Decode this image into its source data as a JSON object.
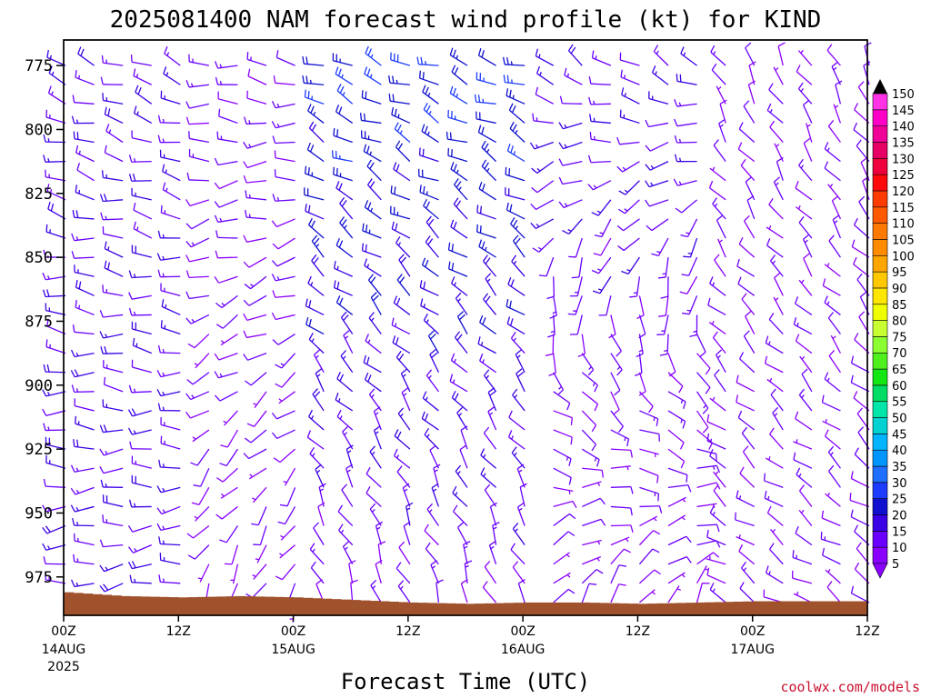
{
  "chart_data": {
    "type": "wind-barb profile",
    "title": "2025081400 NAM forecast wind profile (kt) for KIND",
    "xlabel": "Forecast Time (UTC)",
    "ylabel": "",
    "credit": "coolwx.com/models",
    "y_axis": {
      "unit": "hPa",
      "ylim": [
        765,
        990
      ],
      "ticks": [
        {
          "value": 775,
          "label": "775"
        },
        {
          "value": 800,
          "label": "800"
        },
        {
          "value": 825,
          "label": "825"
        },
        {
          "value": 850,
          "label": "850"
        },
        {
          "value": 875,
          "label": "875"
        },
        {
          "value": 900,
          "label": "900"
        },
        {
          "value": 925,
          "label": "925"
        },
        {
          "value": 950,
          "label": "950"
        },
        {
          "value": 975,
          "label": "975"
        }
      ]
    },
    "x_axis": {
      "unit": "forecast hours",
      "xlim": [
        0,
        84
      ],
      "ticks": [
        {
          "hour": 0,
          "time": "00Z",
          "date": "14AUG",
          "year": "2025"
        },
        {
          "hour": 12,
          "time": "12Z",
          "date": "",
          "year": ""
        },
        {
          "hour": 24,
          "time": "00Z",
          "date": "15AUG",
          "year": ""
        },
        {
          "hour": 36,
          "time": "12Z",
          "date": "",
          "year": ""
        },
        {
          "hour": 48,
          "time": "00Z",
          "date": "16AUG",
          "year": ""
        },
        {
          "hour": 60,
          "time": "12Z",
          "date": "",
          "year": ""
        },
        {
          "hour": 72,
          "time": "00Z",
          "date": "17AUG",
          "year": ""
        },
        {
          "hour": 84,
          "time": "12Z",
          "date": "",
          "year": ""
        }
      ]
    },
    "surface_pressure": [
      {
        "hour": 0,
        "hPa": 981
      },
      {
        "hour": 6,
        "hPa": 982.5
      },
      {
        "hour": 12,
        "hPa": 983
      },
      {
        "hour": 18,
        "hPa": 982.5
      },
      {
        "hour": 24,
        "hPa": 983
      },
      {
        "hour": 30,
        "hPa": 984
      },
      {
        "hour": 36,
        "hPa": 985
      },
      {
        "hour": 42,
        "hPa": 985.5
      },
      {
        "hour": 48,
        "hPa": 985
      },
      {
        "hour": 54,
        "hPa": 985
      },
      {
        "hour": 60,
        "hPa": 985.5
      },
      {
        "hour": 66,
        "hPa": 985
      },
      {
        "hour": 72,
        "hPa": 984.5
      },
      {
        "hour": 78,
        "hPa": 984.5
      },
      {
        "hour": 84,
        "hPa": 984.5
      }
    ],
    "colorbar": {
      "unit": "kt",
      "levels": [
        5,
        10,
        15,
        20,
        25,
        30,
        35,
        40,
        45,
        50,
        55,
        60,
        65,
        70,
        75,
        80,
        85,
        90,
        95,
        100,
        105,
        110,
        115,
        120,
        125,
        130,
        135,
        140,
        145,
        150
      ],
      "colors": [
        "#8a00ff",
        "#6a00ff",
        "#3a00e6",
        "#1010d0",
        "#1e3cff",
        "#1e6eff",
        "#0096ff",
        "#00b4ff",
        "#00d2d2",
        "#00e6aa",
        "#00dc64",
        "#14e614",
        "#50f01e",
        "#8cff32",
        "#c8ff32",
        "#f0ff00",
        "#ffe600",
        "#ffc800",
        "#ffa500",
        "#ff8c00",
        "#ff7800",
        "#ff5a00",
        "#ff3c00",
        "#ff0a0a",
        "#f0003c",
        "#e60064",
        "#f00096",
        "#ff00c8",
        "#ff32e6",
        "#ff64ff"
      ]
    },
    "wind_barbs": {
      "description": "Barbs drawn every 3 h over pressure levels 775-1000 hPa; speeds mostly 5-30 kt, shaft points into the wind.",
      "regimes": [
        {
          "from_hour": 0,
          "to_hour": 12,
          "upper_dir_deg": 290,
          "upper_speed_kt": 15,
          "lower_dir_deg": 260,
          "lower_speed_kt": 15
        },
        {
          "from_hour": 12,
          "to_hour": 24,
          "upper_dir_deg": 280,
          "upper_speed_kt": 12,
          "lower_dir_deg": 200,
          "lower_speed_kt": 8
        },
        {
          "from_hour": 24,
          "to_hour": 48,
          "upper_dir_deg": 290,
          "upper_speed_kt": 25,
          "lower_dir_deg": 340,
          "lower_speed_kt": 10
        },
        {
          "from_hour": 48,
          "to_hour": 66,
          "upper_dir_deg": 300,
          "upper_speed_kt": 15,
          "lower_dir_deg": 20,
          "lower_speed_kt": 8
        },
        {
          "from_hour": 66,
          "to_hour": 84,
          "upper_dir_deg": 330,
          "upper_speed_kt": 10,
          "lower_dir_deg": 300,
          "lower_speed_kt": 10
        }
      ]
    }
  }
}
